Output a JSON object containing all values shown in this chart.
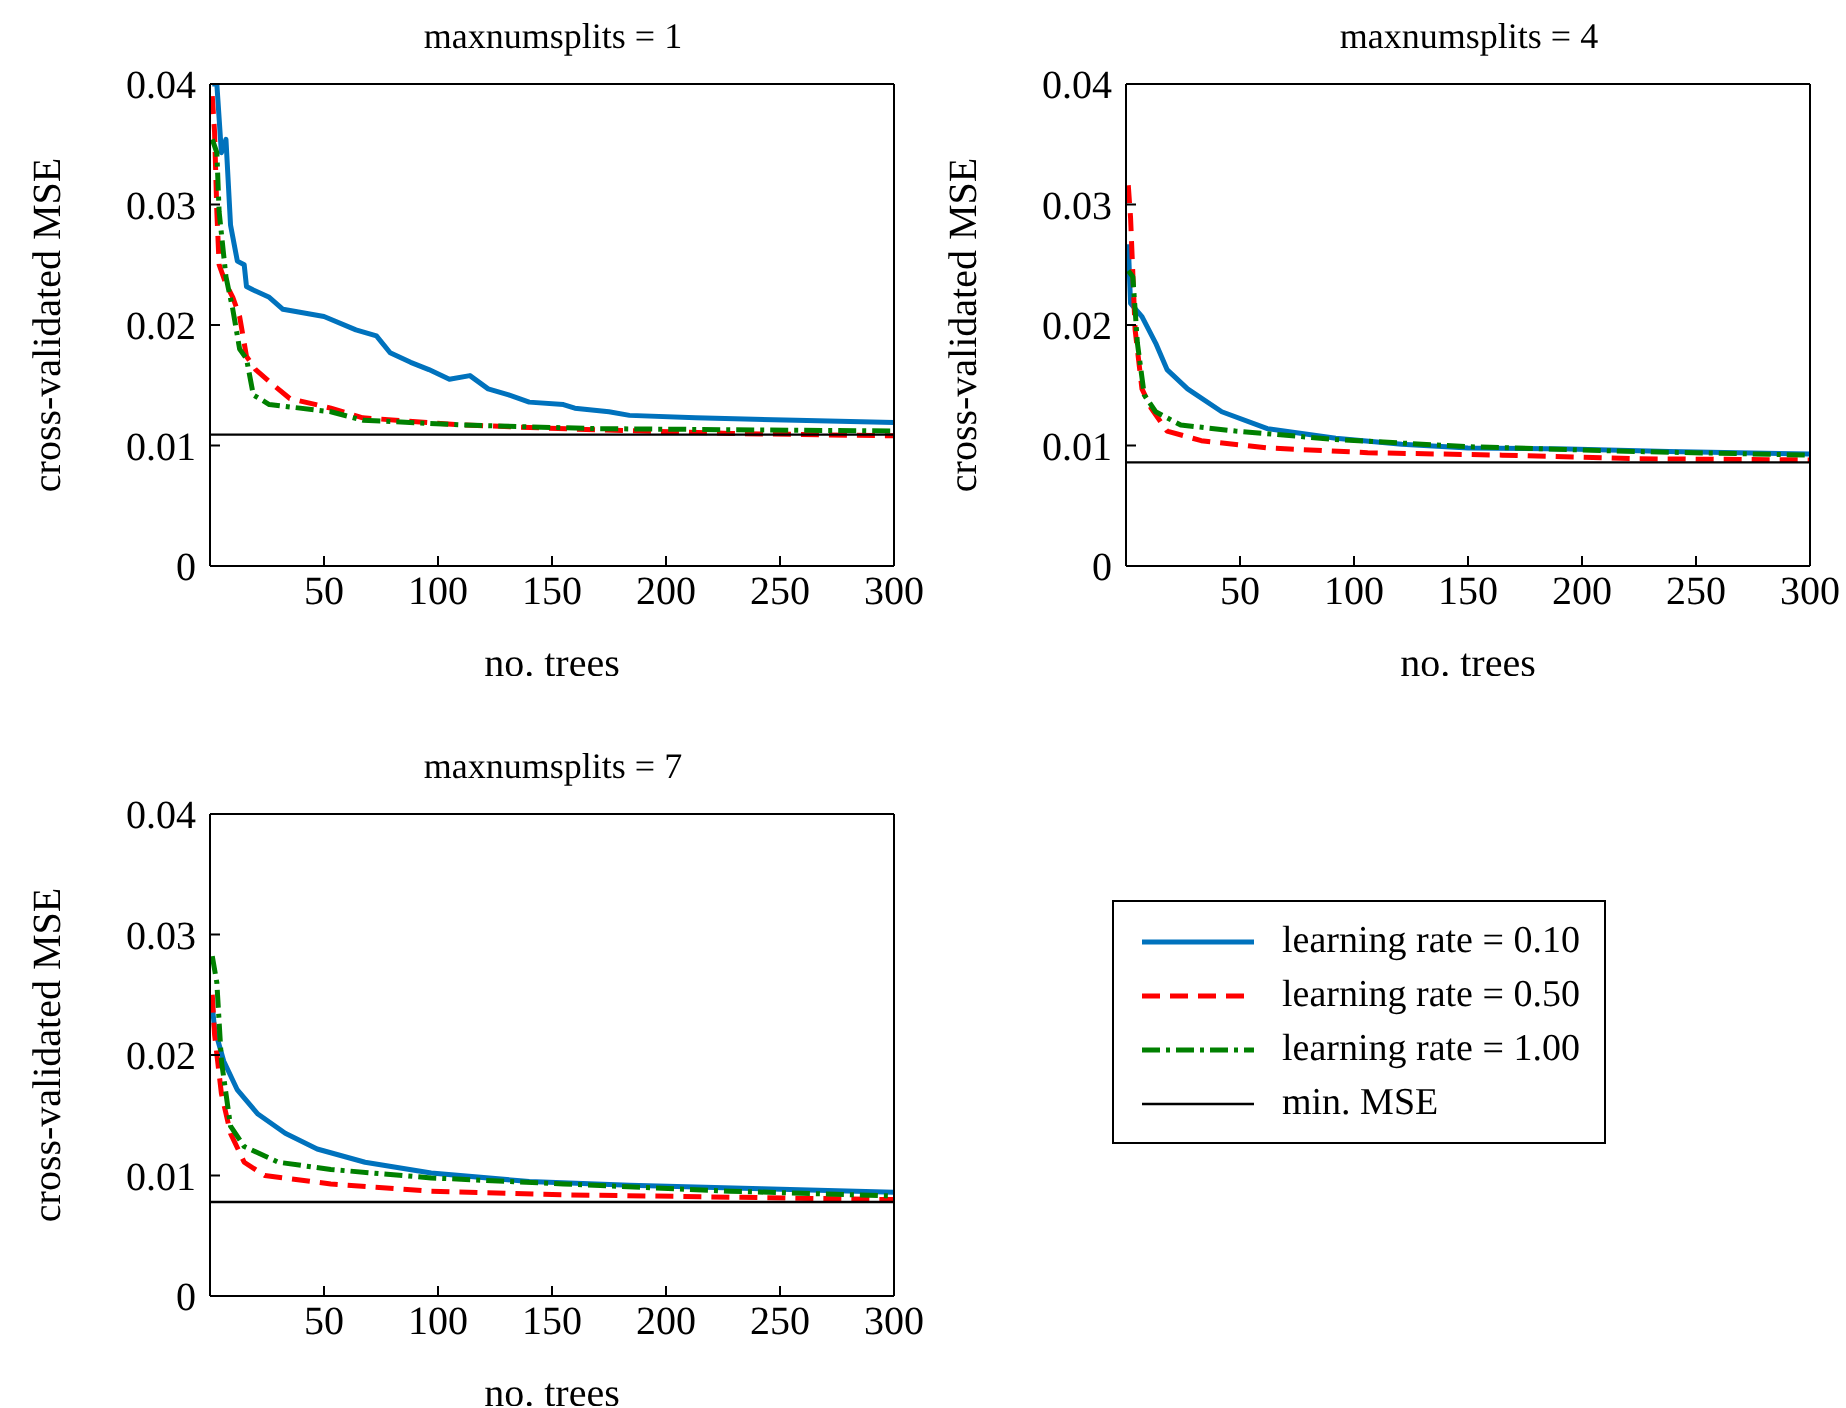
{
  "chart_data": [
    {
      "type": "line",
      "title": "maxnumsplits = 1",
      "xlabel": "no. trees",
      "ylabel": "cross-validated MSE",
      "xlim": [
        0,
        300
      ],
      "xticks": [
        50,
        100,
        150,
        200,
        250,
        300
      ],
      "ylim": [
        0,
        0.04
      ],
      "yticks": [
        0,
        0.01,
        0.02,
        0.03,
        0.04
      ],
      "grid": false,
      "legend": false,
      "marker": "none",
      "series": [
        {
          "color": "#0072bd",
          "line_style": "solid",
          "x": [
            1,
            3,
            5,
            7,
            9,
            12,
            15,
            16,
            19,
            26,
            32,
            50,
            64,
            73,
            79,
            88,
            96,
            105,
            114,
            122,
            131,
            140,
            155,
            160,
            175,
            184,
            213,
            257,
            300
          ],
          "values": [
            0.04,
            0.04,
            0.0343,
            0.0354,
            0.0283,
            0.0253,
            0.025,
            0.0232,
            0.0229,
            0.0223,
            0.0213,
            0.0207,
            0.0196,
            0.0191,
            0.0177,
            0.0169,
            0.0163,
            0.0155,
            0.0158,
            0.0147,
            0.0142,
            0.0136,
            0.0134,
            0.0131,
            0.0128,
            0.0125,
            0.0123,
            0.0121,
            0.0119
          ]
        },
        {
          "color": "#ff0000",
          "line_style": "dashed",
          "x": [
            1,
            2,
            3,
            4,
            7,
            10,
            13,
            16,
            20,
            26,
            35,
            53,
            67,
            111,
            169,
            228,
            300
          ],
          "values": [
            0.039,
            0.036,
            0.0294,
            0.025,
            0.0234,
            0.0223,
            0.0207,
            0.0174,
            0.0163,
            0.0153,
            0.0139,
            0.0131,
            0.0123,
            0.0117,
            0.0113,
            0.011,
            0.0108
          ]
        },
        {
          "color": "#008000",
          "line_style": "dashdot",
          "x": [
            1,
            3,
            4,
            7,
            10,
            13,
            16,
            19,
            26,
            53,
            67,
            111,
            169,
            300
          ],
          "values": [
            0.0354,
            0.0343,
            0.0294,
            0.024,
            0.0213,
            0.018,
            0.0172,
            0.0142,
            0.0134,
            0.0128,
            0.0121,
            0.0117,
            0.0114,
            0.0112
          ]
        },
        {
          "color": "#000000",
          "line_style": "solid",
          "x": [
            0,
            300
          ],
          "values": [
            0.0109,
            0.0109
          ]
        }
      ]
    },
    {
      "type": "line",
      "title": "maxnumsplits = 4",
      "xlabel": "no. trees",
      "ylabel": "cross-validated MSE",
      "xlim": [
        0,
        300
      ],
      "xticks": [
        50,
        100,
        150,
        200,
        250,
        300
      ],
      "ylim": [
        0,
        0.04
      ],
      "yticks": [
        0,
        0.01,
        0.02,
        0.03,
        0.04
      ],
      "grid": false,
      "legend": false,
      "marker": "none",
      "series": [
        {
          "color": "#0072bd",
          "line_style": "solid",
          "x": [
            1,
            2,
            7,
            13,
            18,
            27,
            42,
            62,
            92,
            121,
            150,
            194,
            238,
            300
          ],
          "values": [
            0.0267,
            0.0218,
            0.0207,
            0.0185,
            0.0163,
            0.0147,
            0.0128,
            0.0114,
            0.0106,
            0.0101,
            0.0098,
            0.0097,
            0.0095,
            0.0093
          ]
        },
        {
          "color": "#ff0000",
          "line_style": "dashed",
          "x": [
            1,
            2,
            4,
            7,
            11,
            18,
            33,
            62,
            106,
            165,
            224,
            300
          ],
          "values": [
            0.0316,
            0.0289,
            0.0196,
            0.0147,
            0.0131,
            0.0112,
            0.0104,
            0.0098,
            0.0094,
            0.0092,
            0.0089,
            0.0088
          ]
        },
        {
          "color": "#008000",
          "line_style": "dashdot",
          "x": [
            1,
            3,
            5,
            8,
            13,
            24,
            48,
            92,
            150,
            224,
            300
          ],
          "values": [
            0.0245,
            0.024,
            0.0185,
            0.0142,
            0.0128,
            0.0117,
            0.0112,
            0.0105,
            0.0099,
            0.0095,
            0.0092
          ]
        },
        {
          "color": "#000000",
          "line_style": "solid",
          "x": [
            0,
            300
          ],
          "values": [
            0.0086,
            0.0086
          ]
        }
      ]
    },
    {
      "type": "line",
      "title": "maxnumsplits = 7",
      "xlabel": "no. trees",
      "ylabel": "cross-validated MSE",
      "xlim": [
        0,
        300
      ],
      "xticks": [
        50,
        100,
        150,
        200,
        250,
        300
      ],
      "ylim": [
        0,
        0.04
      ],
      "yticks": [
        0,
        0.01,
        0.02,
        0.03,
        0.04
      ],
      "grid": false,
      "legend": "right",
      "marker": "none",
      "series": [
        {
          "name": "learning rate = 0.10",
          "color": "#0072bd",
          "line_style": "solid",
          "x": [
            1,
            2,
            6,
            12,
            21,
            33,
            47,
            68,
            97,
            140,
            184,
            242,
            300
          ],
          "values": [
            0.0241,
            0.0222,
            0.0195,
            0.0171,
            0.0151,
            0.0135,
            0.0122,
            0.0111,
            0.0102,
            0.0095,
            0.0092,
            0.0089,
            0.0086
          ]
        },
        {
          "name": "learning rate = 0.50",
          "color": "#ff0000",
          "line_style": "dashed",
          "x": [
            1,
            2,
            5,
            9,
            15,
            24,
            53,
            97,
            155,
            228,
            300
          ],
          "values": [
            0.025,
            0.0217,
            0.0168,
            0.0135,
            0.0111,
            0.01,
            0.0093,
            0.0087,
            0.0084,
            0.0082,
            0.008
          ]
        },
        {
          "name": "learning rate = 1.00",
          "color": "#008000",
          "line_style": "dashdot",
          "x": [
            1,
            3,
            5,
            9,
            15,
            30,
            53,
            97,
            155,
            228,
            300
          ],
          "values": [
            0.0282,
            0.026,
            0.0195,
            0.0141,
            0.0124,
            0.0111,
            0.0105,
            0.0098,
            0.0093,
            0.0087,
            0.0083
          ]
        },
        {
          "name": "min. MSE",
          "color": "#000000",
          "line_style": "solid",
          "x": [
            0,
            300
          ],
          "values": [
            0.0078,
            0.0078
          ]
        }
      ]
    }
  ]
}
